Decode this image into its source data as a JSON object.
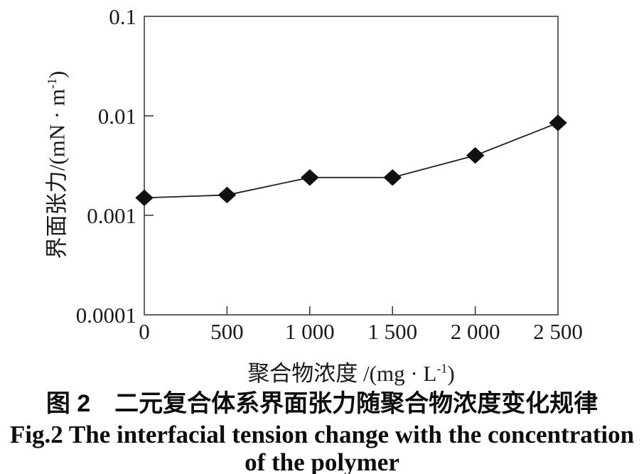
{
  "figure": {
    "caption_zh": "图 2　二元复合体系界面张力随聚合物浓度变化规律",
    "caption_en_line1": "Fig.2 The interfacial tension change with the concentration",
    "caption_en_line2": "of the polymer"
  },
  "chart_data": {
    "type": "line",
    "title": "",
    "x": [
      0,
      500,
      1000,
      1500,
      2000,
      2500
    ],
    "series": [
      {
        "name": "interfacial tension of binary composite system",
        "values": [
          0.0015,
          0.0016,
          0.0024,
          0.0024,
          0.004,
          0.0085
        ]
      }
    ],
    "x_tick_labels": [
      "0",
      "500",
      "1 000",
      "1 500",
      "2 000",
      "2 500"
    ],
    "y_tick_values": [
      0.1,
      0.01,
      0.001,
      0.0001
    ],
    "y_tick_labels": [
      "0.1",
      "0.01",
      "0.001",
      "0.0001"
    ],
    "xlim": [
      0,
      2500
    ],
    "ylim": [
      0.0001,
      0.1
    ],
    "yscale": "log",
    "xlabel": {
      "text": "聚合物浓度 /(mg · L",
      "sup": "-1",
      "suffix": ")"
    },
    "ylabel": {
      "text": "界面张力/(mN · m",
      "sup": "-1",
      "suffix": ")"
    },
    "grid": false,
    "legend": "none",
    "marker": "diamond",
    "colors": {
      "line": "#1f1f1f",
      "marker": "#111111",
      "axis": "#3c3c3c",
      "text": "#1a1a1a",
      "background": "#ffffff"
    }
  }
}
